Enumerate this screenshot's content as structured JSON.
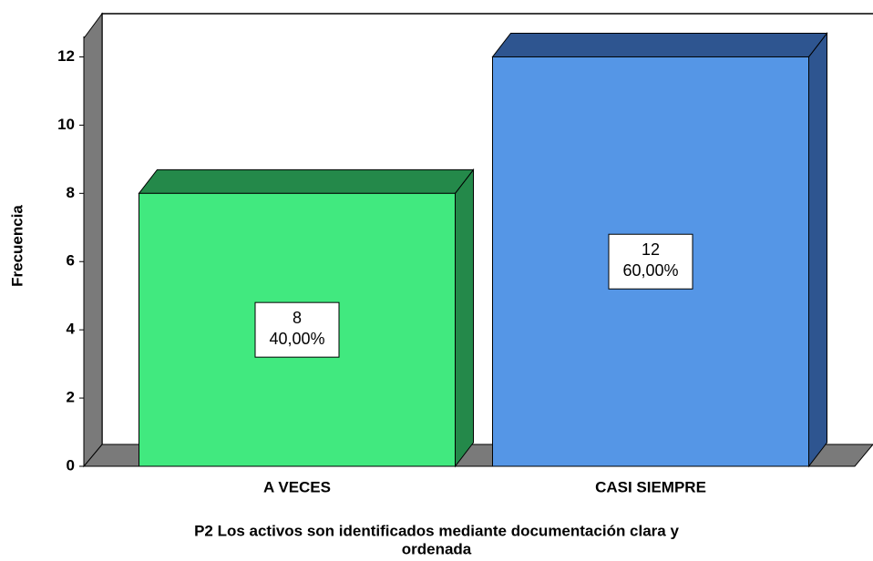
{
  "chart_data": {
    "type": "bar3d",
    "y_label": "Frecuencia",
    "x_label": [
      "P2 Los activos son identificados mediante documentación clara y",
      "ordenada"
    ],
    "categories": [
      "A VECES",
      "CASI SIEMPRE"
    ],
    "values": [
      8,
      12
    ],
    "percents": [
      40,
      60
    ],
    "percent_labels": [
      "40,00%",
      "60,00%"
    ],
    "colors": [
      "#41e97f",
      "#5596e6"
    ],
    "shade_colors": [
      "#24894a",
      "#2e5590"
    ],
    "ylim": [
      0,
      12.6
    ],
    "yticks": [
      0,
      2,
      4,
      6,
      8,
      10,
      12
    ]
  }
}
